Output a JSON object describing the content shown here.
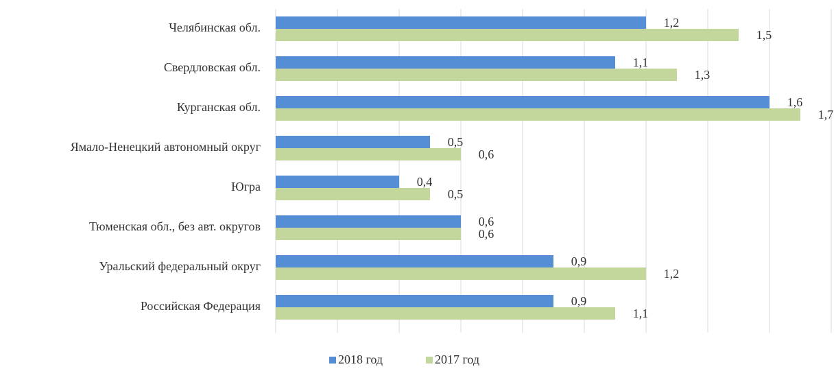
{
  "chart_data": {
    "type": "hbar",
    "categories": [
      "Челябинская обл.",
      "Свердловская обл.",
      "Курганская обл.",
      "Ямало-Ненецкий автономный округ",
      "Югра",
      "Тюменская обл., без авт. округов",
      "Уральский федеральный округ",
      "Российская Федерация"
    ],
    "series": [
      {
        "name": "2018 год",
        "color": "#558ed5",
        "values": [
          1.2,
          1.1,
          1.6,
          0.5,
          0.4,
          0.6,
          0.9,
          0.9
        ],
        "value_labels": [
          "1,2",
          "1,1",
          "1,6",
          "0,5",
          "0,4",
          "0,6",
          "0,9",
          "0,9"
        ]
      },
      {
        "name": "2017 год",
        "color": "#c3d69b",
        "values": [
          1.5,
          1.3,
          1.7,
          0.6,
          0.5,
          0.6,
          1.2,
          1.1
        ],
        "value_labels": [
          "1,5",
          "1,3",
          "1,7",
          "0,6",
          "0,5",
          "0,6",
          "1,2",
          "1,1"
        ]
      }
    ],
    "xlim": [
      0,
      1.8
    ],
    "xticks": [
      0,
      0.2,
      0.4,
      0.6,
      0.8,
      1,
      1.2,
      1.4,
      1.6,
      1.8
    ],
    "grid": true,
    "legend": "bottom"
  }
}
